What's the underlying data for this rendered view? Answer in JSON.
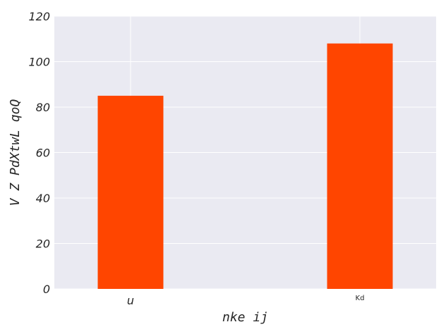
{
  "chart_data": {
    "type": "bar",
    "categories": [
      "u",
      "Kd"
    ],
    "values": [
      85,
      108
    ],
    "title": "",
    "xlabel": "nke ij",
    "ylabel": "V Z PdXtwL qoQ",
    "ylim": [
      0,
      120
    ],
    "yticks": [
      0,
      20,
      40,
      60,
      80,
      100,
      120
    ],
    "bar_color": "#ff4500",
    "background_color": "#eaeaf2",
    "grid_color": "#ffffff",
    "grid": true
  }
}
